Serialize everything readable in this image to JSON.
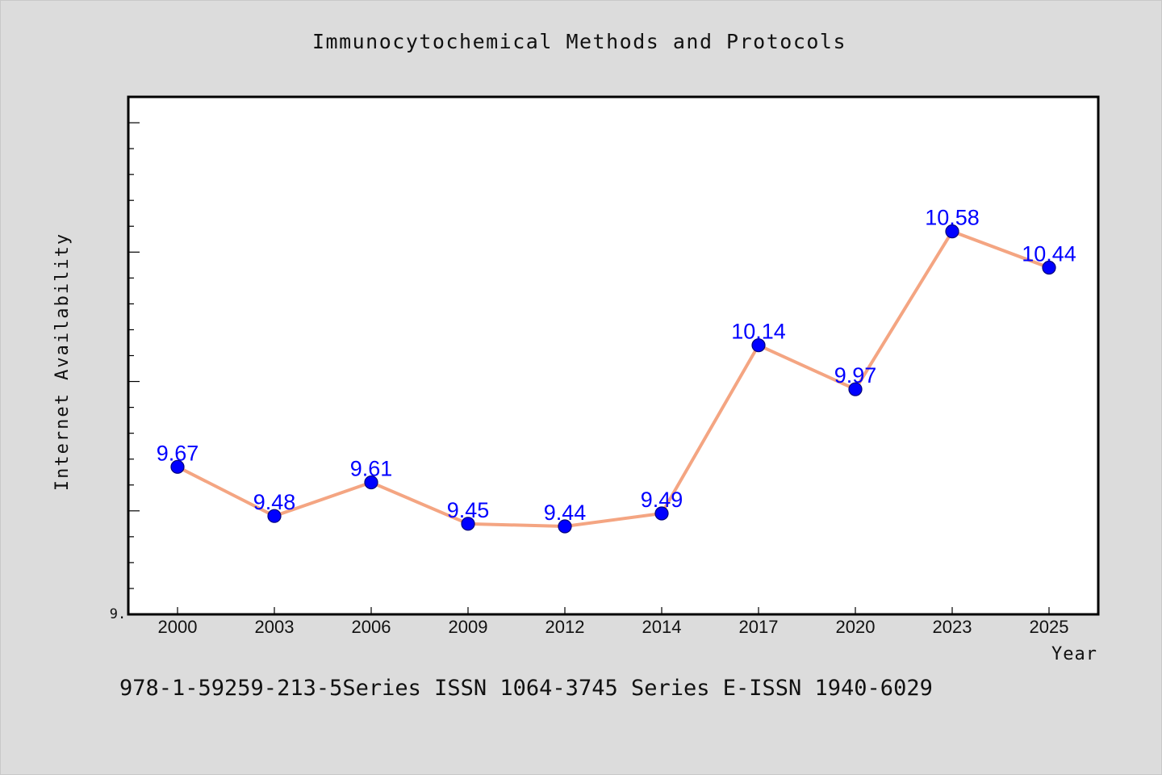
{
  "chart_data": {
    "type": "line",
    "title": "Immunocytochemical Methods and Protocols",
    "xlabel": "Year",
    "ylabel": "Internet Availability",
    "ytick_labels": [
      "9."
    ],
    "ylim": [
      9.1,
      11.1
    ],
    "grid": false,
    "categories": [
      "2000",
      "2003",
      "2006",
      "2009",
      "2012",
      "2014",
      "2017",
      "2020",
      "2023",
      "2025"
    ],
    "values": [
      9.67,
      9.48,
      9.61,
      9.45,
      9.44,
      9.49,
      10.14,
      9.97,
      10.58,
      10.44
    ],
    "data_labels": [
      "9.67",
      "9.48",
      "9.61",
      "9.45",
      "9.44",
      "9.49",
      "10.14",
      "9.97",
      "10.58",
      "10.44"
    ],
    "colors": {
      "line": "#f4a582",
      "marker": "#0000ff",
      "label": "#0000ff"
    }
  },
  "footer": {
    "text": "978-1-59259-213-5Series ISSN 1064-3745 Series E-ISSN 1940-6029"
  }
}
